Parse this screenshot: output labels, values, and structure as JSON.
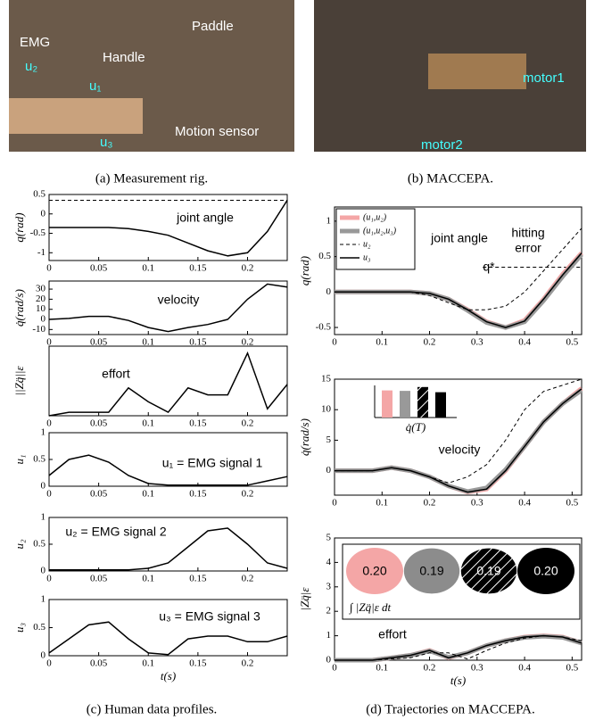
{
  "figure": {
    "photo_a": {
      "labels": [
        "EMG",
        "u₂",
        "u₁",
        "u₃",
        "Handle",
        "Paddle",
        "Motion sensor"
      ]
    },
    "photo_b": {
      "labels": [
        "motor1",
        "motor2"
      ]
    },
    "captions": [
      "(a) Measurement rig.",
      "(b) MACCEPA.",
      "(c) Human data profiles.",
      "(d) Trajectories on MACCEPA."
    ]
  },
  "chart_data": [
    {
      "type": "line",
      "ylabel": "q(rad)",
      "annotations": [
        "joint angle"
      ],
      "xlim": [
        0,
        0.24
      ],
      "xticks": [
        0,
        0.05,
        0.1,
        0.15,
        0.2
      ],
      "ylim": [
        -1.2,
        0.5
      ],
      "yticks": [
        -1,
        -0.5,
        0,
        0.5
      ],
      "x": [
        0,
        0.02,
        0.04,
        0.06,
        0.08,
        0.1,
        0.12,
        0.14,
        0.16,
        0.18,
        0.2,
        0.22,
        0.24
      ],
      "series": [
        {
          "color": "#000",
          "style": "solid",
          "values": [
            -0.35,
            -0.35,
            -0.35,
            -0.35,
            -0.38,
            -0.45,
            -0.55,
            -0.75,
            -0.95,
            -1.08,
            -1.0,
            -0.45,
            0.35
          ]
        },
        {
          "color": "#000",
          "style": "dashed",
          "values": [
            0.35,
            0.35,
            0.35,
            0.35,
            0.35,
            0.35,
            0.35,
            0.35,
            0.35,
            0.35,
            0.35,
            0.35,
            0.35
          ]
        }
      ]
    },
    {
      "type": "line",
      "ylabel": "q̇(rad/s)",
      "annotations": [
        "velocity"
      ],
      "xlim": [
        0,
        0.24
      ],
      "xticks": [
        0,
        0.05,
        0.1,
        0.15,
        0.2
      ],
      "ylim": [
        -15,
        38
      ],
      "yticks": [
        -10,
        0,
        10,
        20,
        30
      ],
      "x": [
        0,
        0.02,
        0.04,
        0.06,
        0.08,
        0.1,
        0.12,
        0.14,
        0.16,
        0.18,
        0.2,
        0.22,
        0.24
      ],
      "series": [
        {
          "color": "#000",
          "style": "solid",
          "values": [
            0,
            1,
            3,
            3,
            -1,
            -8,
            -12,
            -8,
            -5,
            0,
            20,
            35,
            32
          ]
        }
      ]
    },
    {
      "type": "line",
      "ylabel": "||Zq̈||ε",
      "annotations": [
        "effort"
      ],
      "xlim": [
        0,
        0.24
      ],
      "xticks": [
        0,
        0.05,
        0.1,
        0.15,
        0.2
      ],
      "ylim": [
        0,
        10
      ],
      "yticks": [],
      "x": [
        0,
        0.02,
        0.04,
        0.06,
        0.08,
        0.1,
        0.12,
        0.14,
        0.16,
        0.18,
        0.2,
        0.22,
        0.24
      ],
      "series": [
        {
          "color": "#000",
          "style": "solid",
          "values": [
            0,
            0.5,
            0.5,
            0.5,
            4,
            2,
            0.5,
            4,
            3,
            3,
            9,
            1,
            4.5
          ]
        }
      ]
    },
    {
      "type": "line",
      "ylabel": "u₁",
      "annotations": [
        "u₁ = EMG signal 1"
      ],
      "xlim": [
        0,
        0.24
      ],
      "xticks": [
        0,
        0.05,
        0.1,
        0.15,
        0.2
      ],
      "ylim": [
        0,
        1
      ],
      "yticks": [
        0,
        0.5,
        1
      ],
      "x": [
        0,
        0.02,
        0.04,
        0.06,
        0.08,
        0.1,
        0.12,
        0.14,
        0.16,
        0.18,
        0.2,
        0.22,
        0.24
      ],
      "series": [
        {
          "color": "#000",
          "style": "solid",
          "values": [
            0.2,
            0.5,
            0.58,
            0.45,
            0.2,
            0.05,
            0.02,
            0.02,
            0.02,
            0.02,
            0.02,
            0.1,
            0.18
          ]
        }
      ]
    },
    {
      "type": "line",
      "ylabel": "u₂",
      "annotations": [
        "u₂ = EMG signal 2"
      ],
      "xlim": [
        0,
        0.24
      ],
      "xticks": [
        0,
        0.05,
        0.1,
        0.15,
        0.2
      ],
      "ylim": [
        0,
        1
      ],
      "yticks": [
        0,
        0.5,
        1
      ],
      "x": [
        0,
        0.02,
        0.04,
        0.06,
        0.08,
        0.1,
        0.12,
        0.14,
        0.16,
        0.18,
        0.2,
        0.22,
        0.24
      ],
      "series": [
        {
          "color": "#000",
          "style": "solid",
          "values": [
            0.02,
            0.02,
            0.02,
            0.02,
            0.02,
            0.05,
            0.15,
            0.45,
            0.75,
            0.8,
            0.5,
            0.15,
            0.05
          ]
        }
      ]
    },
    {
      "type": "line",
      "ylabel": "u₃",
      "xlabel": "t(s)",
      "annotations": [
        "u₃ = EMG signal 3"
      ],
      "xlim": [
        0,
        0.24
      ],
      "xticks": [
        0,
        0.05,
        0.1,
        0.15,
        0.2
      ],
      "ylim": [
        0,
        1
      ],
      "yticks": [
        0,
        0.5,
        1
      ],
      "x": [
        0,
        0.02,
        0.04,
        0.06,
        0.08,
        0.1,
        0.12,
        0.14,
        0.16,
        0.18,
        0.2,
        0.22,
        0.24
      ],
      "series": [
        {
          "color": "#000",
          "style": "solid",
          "values": [
            0.05,
            0.3,
            0.55,
            0.6,
            0.3,
            0.05,
            0.02,
            0.3,
            0.35,
            0.35,
            0.25,
            0.25,
            0.35
          ]
        }
      ]
    },
    {
      "type": "line",
      "ylabel": "q(rad)",
      "annotations": [
        "joint angle",
        "q*",
        "hitting",
        "error"
      ],
      "legend": "upper left",
      "xlim": [
        0,
        0.52
      ],
      "xticks": [
        0,
        0.1,
        0.2,
        0.3,
        0.4,
        0.5
      ],
      "ylim": [
        -0.6,
        1.2
      ],
      "yticks": [
        -0.5,
        0,
        0.5,
        1
      ],
      "reference": 0.35,
      "x": [
        0,
        0.04,
        0.08,
        0.12,
        0.16,
        0.2,
        0.24,
        0.28,
        0.32,
        0.36,
        0.4,
        0.44,
        0.48,
        0.52
      ],
      "series": [
        {
          "name": "(u₁,u₂)",
          "color": "#f4a6a6",
          "style": "thick",
          "values": [
            0,
            0,
            0,
            0,
            0,
            -0.02,
            -0.1,
            -0.25,
            -0.42,
            -0.5,
            -0.4,
            -0.1,
            0.25,
            0.55
          ]
        },
        {
          "name": "(u₁,u₂,u₃)",
          "color": "#999",
          "style": "thick",
          "values": [
            0,
            0,
            0,
            0,
            0,
            -0.02,
            -0.1,
            -0.26,
            -0.43,
            -0.5,
            -0.42,
            -0.12,
            0.22,
            0.53
          ]
        },
        {
          "name": "u₂",
          "color": "#000",
          "style": "dashed",
          "values": [
            0,
            0,
            0,
            0,
            0,
            -0.05,
            -0.15,
            -0.25,
            -0.25,
            -0.2,
            0,
            0.3,
            0.6,
            0.9
          ]
        },
        {
          "name": "u₃",
          "color": "#000",
          "style": "solid",
          "values": [
            0,
            0,
            0,
            0,
            0,
            -0.02,
            -0.1,
            -0.25,
            -0.42,
            -0.5,
            -0.41,
            -0.1,
            0.24,
            0.55
          ]
        }
      ]
    },
    {
      "type": "line",
      "ylabel": "q̇(rad/s)",
      "annotations": [
        "velocity"
      ],
      "inset_label": "q̇(T)",
      "inset_values": [
        12,
        11.8,
        13.5,
        11.2
      ],
      "xlim": [
        0,
        0.52
      ],
      "xticks": [
        0,
        0.1,
        0.2,
        0.3,
        0.4,
        0.5
      ],
      "ylim": [
        -4,
        15
      ],
      "yticks": [
        0,
        5,
        10,
        15
      ],
      "x": [
        0,
        0.04,
        0.08,
        0.12,
        0.16,
        0.2,
        0.24,
        0.28,
        0.32,
        0.36,
        0.4,
        0.44,
        0.48,
        0.52
      ],
      "series": [
        {
          "color": "#f4a6a6",
          "style": "thick",
          "values": [
            0,
            0,
            0,
            0.5,
            0,
            -1,
            -2.5,
            -3.5,
            -3,
            0,
            4,
            8,
            11,
            13.5
          ]
        },
        {
          "color": "#999",
          "style": "thick",
          "values": [
            0,
            0,
            0,
            0.5,
            0,
            -1,
            -2.5,
            -3.4,
            -2.8,
            0.2,
            4,
            8,
            11,
            13.2
          ]
        },
        {
          "color": "#000",
          "style": "dashed",
          "values": [
            0,
            0,
            0,
            0.5,
            0,
            -1,
            -2,
            -1,
            1,
            5,
            10,
            13,
            14,
            15
          ]
        },
        {
          "color": "#000",
          "style": "solid",
          "values": [
            0,
            0,
            0,
            0.5,
            0,
            -1,
            -2.5,
            -3.5,
            -3,
            0,
            4,
            8,
            11,
            13.4
          ]
        }
      ]
    },
    {
      "type": "line",
      "ylabel": "|Zq̈|ε",
      "xlabel": "t(s)",
      "annotations": [
        "effort"
      ],
      "inset_label": "∫ |Zq̈|ε dt",
      "inset_values": [
        0.2,
        0.19,
        0.19,
        0.2
      ],
      "inset_value_labels": [
        "0.20",
        "0.19",
        "0.19",
        "0.20"
      ],
      "xlim": [
        0,
        0.52
      ],
      "xticks": [
        0,
        0.1,
        0.2,
        0.3,
        0.4,
        0.5
      ],
      "ylim": [
        0,
        5
      ],
      "yticks": [
        0,
        1,
        2,
        3,
        4,
        5
      ],
      "x": [
        0,
        0.04,
        0.08,
        0.12,
        0.16,
        0.2,
        0.24,
        0.28,
        0.32,
        0.36,
        0.4,
        0.44,
        0.48,
        0.52
      ],
      "series": [
        {
          "color": "#f4a6a6",
          "style": "thick",
          "values": [
            0,
            0,
            0,
            0.1,
            0.2,
            0.4,
            0.1,
            0.3,
            0.6,
            0.8,
            0.95,
            1,
            0.95,
            0.7
          ]
        },
        {
          "color": "#999",
          "style": "thick",
          "values": [
            0,
            0,
            0,
            0.1,
            0.2,
            0.38,
            0.12,
            0.3,
            0.6,
            0.8,
            0.93,
            0.98,
            0.93,
            0.7
          ]
        },
        {
          "color": "#000",
          "style": "dashed",
          "values": [
            0,
            0,
            0,
            0.05,
            0.1,
            0.3,
            0.3,
            0.05,
            0.4,
            0.7,
            0.9,
            1,
            0.95,
            0.8
          ]
        },
        {
          "color": "#000",
          "style": "solid",
          "values": [
            0,
            0,
            0,
            0.1,
            0.2,
            0.4,
            0.1,
            0.3,
            0.6,
            0.8,
            0.95,
            1,
            0.95,
            0.7
          ]
        }
      ]
    }
  ]
}
